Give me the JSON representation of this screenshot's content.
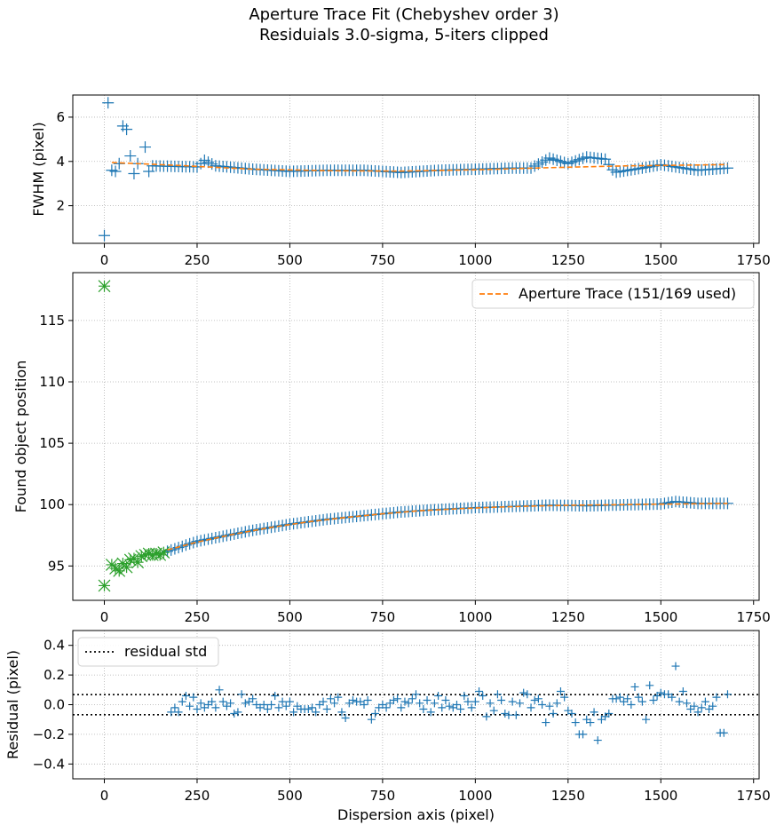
{
  "figure": {
    "title_line1": "Aperture Trace Fit (Chebyshev order 3)",
    "title_line2": "Residuials 3.0-sigma, 5-iters clipped"
  },
  "colors": {
    "data": "#1f77b4",
    "fit": "#ff7f0e",
    "clipped": "#2ca02c",
    "std": "#000000",
    "grid": "#b0b0b0"
  },
  "chart_data": [
    {
      "type": "scatter",
      "ylabel": "FWHM (pixel)",
      "xlim": [
        -85,
        1765
      ],
      "ylim": [
        0.3,
        7.0
      ],
      "xticks": [
        0,
        250,
        500,
        750,
        1000,
        1250,
        1500,
        1750
      ],
      "yticks": [
        2,
        4,
        6
      ],
      "grid": true,
      "series": [
        {
          "kind": "points",
          "marker": "plus",
          "points": [
            [
              0,
              0.65
            ],
            [
              10,
              6.65
            ],
            [
              20,
              3.6
            ],
            [
              30,
              3.55
            ],
            [
              40,
              3.9
            ],
            [
              50,
              5.6
            ],
            [
              60,
              5.45
            ],
            [
              70,
              4.25
            ],
            [
              80,
              3.45
            ],
            [
              90,
              3.9
            ],
            [
              110,
              4.65
            ],
            [
              120,
              3.55
            ]
          ],
          "profile": [
            [
              130,
              3.8
            ],
            [
              250,
              3.75
            ],
            [
              270,
              4.05
            ],
            [
              300,
              3.8
            ],
            [
              400,
              3.65
            ],
            [
              500,
              3.55
            ],
            [
              600,
              3.6
            ],
            [
              700,
              3.6
            ],
            [
              800,
              3.5
            ],
            [
              900,
              3.6
            ],
            [
              1000,
              3.65
            ],
            [
              1100,
              3.7
            ],
            [
              1150,
              3.7
            ],
            [
              1200,
              4.15
            ],
            [
              1250,
              3.9
            ],
            [
              1300,
              4.2
            ],
            [
              1350,
              4.1
            ],
            [
              1375,
              3.5
            ],
            [
              1450,
              3.7
            ],
            [
              1500,
              3.85
            ],
            [
              1600,
              3.6
            ],
            [
              1680,
              3.7
            ]
          ],
          "step": 10
        },
        {
          "kind": "line",
          "style": "dashed",
          "name": "",
          "points": [
            [
              20,
              3.95
            ],
            [
              200,
              3.82
            ],
            [
              400,
              3.65
            ],
            [
              600,
              3.58
            ],
            [
              800,
              3.56
            ],
            [
              1000,
              3.62
            ],
            [
              1200,
              3.72
            ],
            [
              1400,
              3.8
            ],
            [
              1600,
              3.84
            ],
            [
              1680,
              3.86
            ]
          ]
        }
      ]
    },
    {
      "type": "scatter",
      "ylabel": "Found object position",
      "xlim": [
        -85,
        1765
      ],
      "ylim": [
        92.2,
        118.9
      ],
      "xticks": [
        0,
        250,
        500,
        750,
        1000,
        1250,
        1500,
        1750
      ],
      "yticks": [
        95,
        100,
        105,
        110,
        115
      ],
      "grid": true,
      "legend": {
        "position": "top-right",
        "label": "Aperture Trace (151/169 used)"
      },
      "series": [
        {
          "kind": "points",
          "marker": "plus",
          "name": "used",
          "profile": [
            [
              170,
              96.2
            ],
            [
              250,
              97.0
            ],
            [
              300,
              97.3
            ],
            [
              400,
              97.9
            ],
            [
              500,
              98.4
            ],
            [
              600,
              98.8
            ],
            [
              700,
              99.1
            ],
            [
              800,
              99.4
            ],
            [
              900,
              99.6
            ],
            [
              1000,
              99.75
            ],
            [
              1100,
              99.85
            ],
            [
              1200,
              99.95
            ],
            [
              1300,
              99.9
            ],
            [
              1400,
              99.98
            ],
            [
              1500,
              100.05
            ],
            [
              1540,
              100.25
            ],
            [
              1600,
              100.1
            ],
            [
              1680,
              100.1
            ]
          ],
          "step": 10
        },
        {
          "kind": "points",
          "marker": "x",
          "name": "clipped",
          "points": [
            [
              0,
              117.8
            ],
            [
              0,
              93.4
            ],
            [
              20,
              95.1
            ],
            [
              30,
              94.8
            ],
            [
              40,
              94.6
            ],
            [
              50,
              95.2
            ],
            [
              60,
              94.9
            ],
            [
              70,
              95.5
            ],
            [
              80,
              95.6
            ],
            [
              90,
              95.3
            ],
            [
              100,
              95.8
            ],
            [
              110,
              95.9
            ],
            [
              120,
              96.0
            ],
            [
              130,
              95.9
            ],
            [
              140,
              96.0
            ],
            [
              150,
              95.9
            ],
            [
              160,
              96.1
            ]
          ]
        },
        {
          "kind": "line",
          "style": "dashed",
          "name": "Aperture Trace (151/169 used)",
          "points": [
            [
              170,
              96.3
            ],
            [
              250,
              96.95
            ],
            [
              350,
              97.6
            ],
            [
              450,
              98.15
            ],
            [
              550,
              98.6
            ],
            [
              650,
              98.95
            ],
            [
              750,
              99.25
            ],
            [
              850,
              99.5
            ],
            [
              950,
              99.65
            ],
            [
              1050,
              99.78
            ],
            [
              1150,
              99.88
            ],
            [
              1250,
              99.94
            ],
            [
              1350,
              99.98
            ],
            [
              1450,
              100.02
            ],
            [
              1550,
              100.05
            ],
            [
              1680,
              100.1
            ]
          ]
        }
      ]
    },
    {
      "type": "scatter",
      "xlabel": "Dispersion axis (pixel)",
      "ylabel": "Residual (pixel)",
      "xlim": [
        -85,
        1765
      ],
      "ylim": [
        -0.5,
        0.5
      ],
      "xticks": [
        0,
        250,
        500,
        750,
        1000,
        1250,
        1500,
        1750
      ],
      "yticks": [
        -0.4,
        -0.2,
        0.0,
        0.2,
        0.4
      ],
      "grid": true,
      "legend": {
        "position": "top-left",
        "label": "residual std"
      },
      "std": 0.068,
      "series": [
        {
          "kind": "points",
          "marker": "plus",
          "points": [
            [
              180,
              -0.05
            ],
            [
              190,
              -0.02
            ],
            [
              200,
              -0.05
            ],
            [
              210,
              0.02
            ],
            [
              220,
              0.06
            ],
            [
              230,
              -0.01
            ],
            [
              240,
              0.05
            ],
            [
              250,
              -0.03
            ],
            [
              260,
              0.01
            ],
            [
              270,
              -0.02
            ],
            [
              280,
              0.0
            ],
            [
              290,
              0.02
            ],
            [
              300,
              -0.02
            ],
            [
              310,
              0.1
            ],
            [
              320,
              0.02
            ],
            [
              330,
              -0.01
            ],
            [
              340,
              0.01
            ],
            [
              350,
              -0.06
            ],
            [
              360,
              -0.05
            ],
            [
              370,
              0.07
            ],
            [
              380,
              0.01
            ],
            [
              390,
              0.02
            ],
            [
              400,
              0.04
            ],
            [
              410,
              0.0
            ],
            [
              420,
              -0.02
            ],
            [
              430,
              0.0
            ],
            [
              440,
              -0.03
            ],
            [
              450,
              0.0
            ],
            [
              460,
              0.06
            ],
            [
              470,
              -0.02
            ],
            [
              480,
              0.02
            ],
            [
              490,
              -0.01
            ],
            [
              500,
              0.02
            ],
            [
              510,
              -0.05
            ],
            [
              520,
              -0.01
            ],
            [
              530,
              -0.03
            ],
            [
              540,
              -0.03
            ],
            [
              550,
              -0.03
            ],
            [
              560,
              -0.02
            ],
            [
              570,
              -0.05
            ],
            [
              580,
              0.0
            ],
            [
              590,
              0.02
            ],
            [
              600,
              -0.03
            ],
            [
              610,
              0.04
            ],
            [
              620,
              0.01
            ],
            [
              630,
              0.05
            ],
            [
              640,
              -0.05
            ],
            [
              650,
              -0.09
            ],
            [
              660,
              0.01
            ],
            [
              670,
              0.03
            ],
            [
              680,
              0.02
            ],
            [
              690,
              0.02
            ],
            [
              700,
              0.0
            ],
            [
              710,
              0.03
            ],
            [
              720,
              -0.1
            ],
            [
              730,
              -0.06
            ],
            [
              740,
              -0.02
            ],
            [
              750,
              0.0
            ],
            [
              760,
              -0.02
            ],
            [
              770,
              0.01
            ],
            [
              780,
              0.03
            ],
            [
              790,
              0.04
            ],
            [
              800,
              -0.02
            ],
            [
              810,
              0.02
            ],
            [
              820,
              0.01
            ],
            [
              830,
              0.04
            ],
            [
              840,
              0.07
            ],
            [
              850,
              0.01
            ],
            [
              860,
              -0.03
            ],
            [
              870,
              0.03
            ],
            [
              880,
              -0.05
            ],
            [
              890,
              0.01
            ],
            [
              900,
              0.06
            ],
            [
              910,
              -0.02
            ],
            [
              920,
              0.03
            ],
            [
              930,
              -0.01
            ],
            [
              940,
              -0.02
            ],
            [
              950,
              0.0
            ],
            [
              960,
              -0.03
            ],
            [
              970,
              0.06
            ],
            [
              980,
              0.02
            ],
            [
              990,
              -0.02
            ],
            [
              1000,
              0.02
            ],
            [
              1010,
              0.09
            ],
            [
              1020,
              0.06
            ],
            [
              1030,
              -0.08
            ],
            [
              1040,
              0.01
            ],
            [
              1050,
              -0.04
            ],
            [
              1060,
              0.07
            ],
            [
              1070,
              0.03
            ],
            [
              1080,
              -0.06
            ],
            [
              1090,
              -0.07
            ],
            [
              1100,
              0.02
            ],
            [
              1110,
              -0.07
            ],
            [
              1120,
              0.01
            ],
            [
              1130,
              0.08
            ],
            [
              1140,
              0.07
            ],
            [
              1150,
              -0.02
            ],
            [
              1160,
              0.03
            ],
            [
              1170,
              0.04
            ],
            [
              1180,
              0.0
            ],
            [
              1190,
              -0.12
            ],
            [
              1200,
              -0.01
            ],
            [
              1210,
              -0.06
            ],
            [
              1220,
              0.01
            ],
            [
              1230,
              0.09
            ],
            [
              1240,
              0.05
            ],
            [
              1250,
              -0.04
            ],
            [
              1260,
              -0.06
            ],
            [
              1270,
              -0.12
            ],
            [
              1280,
              -0.2
            ],
            [
              1290,
              -0.2
            ],
            [
              1300,
              -0.1
            ],
            [
              1310,
              -0.12
            ],
            [
              1320,
              -0.05
            ],
            [
              1330,
              -0.24
            ],
            [
              1340,
              -0.1
            ],
            [
              1350,
              -0.08
            ],
            [
              1360,
              -0.06
            ],
            [
              1370,
              0.04
            ],
            [
              1380,
              0.04
            ],
            [
              1390,
              0.05
            ],
            [
              1400,
              0.02
            ],
            [
              1410,
              0.04
            ],
            [
              1420,
              0.0
            ],
            [
              1430,
              0.12
            ],
            [
              1440,
              0.05
            ],
            [
              1450,
              0.02
            ],
            [
              1460,
              -0.1
            ],
            [
              1470,
              0.13
            ],
            [
              1480,
              0.03
            ],
            [
              1490,
              0.06
            ],
            [
              1500,
              0.08
            ],
            [
              1510,
              0.07
            ],
            [
              1520,
              0.07
            ],
            [
              1530,
              0.05
            ],
            [
              1540,
              0.26
            ],
            [
              1550,
              0.02
            ],
            [
              1560,
              0.09
            ],
            [
              1570,
              0.01
            ],
            [
              1580,
              -0.03
            ],
            [
              1590,
              -0.01
            ],
            [
              1600,
              -0.05
            ],
            [
              1610,
              -0.02
            ],
            [
              1620,
              0.02
            ],
            [
              1630,
              -0.03
            ],
            [
              1640,
              -0.01
            ],
            [
              1650,
              0.05
            ],
            [
              1660,
              -0.19
            ],
            [
              1670,
              -0.19
            ],
            [
              1680,
              0.07
            ]
          ]
        }
      ]
    }
  ]
}
